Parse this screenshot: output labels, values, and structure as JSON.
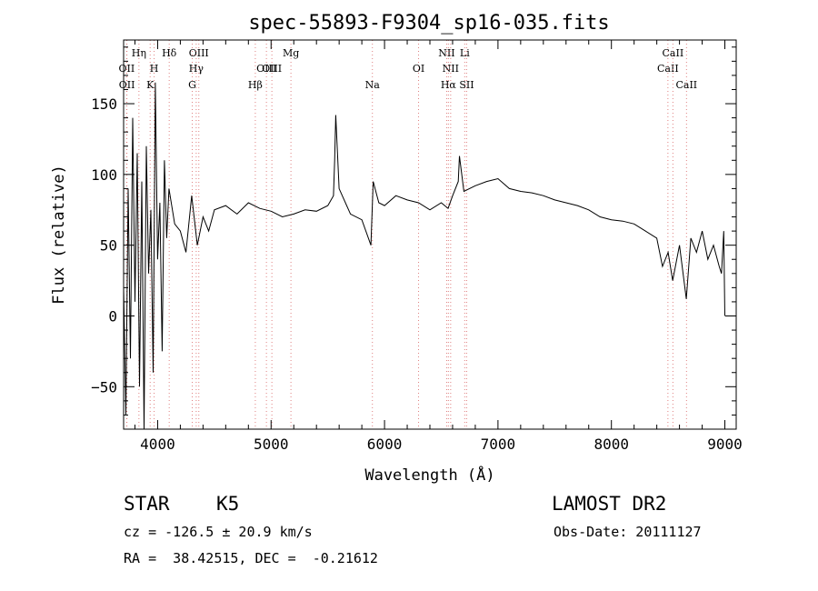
{
  "chart_data": {
    "type": "line",
    "title": "spec-55893-F9304_sp16-035.fits",
    "xlabel": "Wavelength (Å)",
    "ylabel": "Flux (relative)",
    "xlim": [
      3700,
      9100
    ],
    "ylim": [
      -80,
      195
    ],
    "xticks": [
      4000,
      5000,
      6000,
      7000,
      8000,
      9000
    ],
    "yticks": [
      -50,
      0,
      50,
      100,
      150
    ],
    "grid": false,
    "line_color": "#000000",
    "marker_color": "#e08080",
    "series": [
      {
        "x": [
          3700,
          3720,
          3740,
          3760,
          3780,
          3800,
          3820,
          3840,
          3860,
          3880,
          3900,
          3920,
          3940,
          3960,
          3980,
          4000,
          4020,
          4040,
          4060,
          4080,
          4100,
          4150,
          4200,
          4250,
          4300,
          4350,
          4400,
          4450,
          4500,
          4600,
          4700,
          4800,
          4900,
          5000,
          5100,
          5200,
          5300,
          5400,
          5500,
          5550,
          5560,
          5570,
          5600,
          5700,
          5800,
          5880,
          5900,
          5950,
          6000,
          6100,
          6200,
          6300,
          6400,
          6500,
          6560,
          6600,
          6650,
          6660,
          6700,
          6800,
          6900,
          7000,
          7100,
          7200,
          7300,
          7400,
          7500,
          7600,
          7700,
          7800,
          7900,
          8000,
          8100,
          8200,
          8300,
          8400,
          8450,
          8500,
          8540,
          8600,
          8660,
          8700,
          8750,
          8800,
          8850,
          8900,
          8950,
          8970,
          8990,
          9000
        ],
        "y": [
          20,
          -70,
          90,
          -30,
          140,
          10,
          115,
          -50,
          95,
          -80,
          120,
          30,
          75,
          -40,
          165,
          40,
          80,
          -25,
          110,
          55,
          90,
          65,
          60,
          45,
          85,
          50,
          70,
          60,
          75,
          78,
          72,
          80,
          76,
          74,
          70,
          72,
          75,
          74,
          78,
          85,
          110,
          142,
          90,
          72,
          68,
          50,
          95,
          80,
          78,
          85,
          82,
          80,
          75,
          80,
          76,
          85,
          95,
          113,
          88,
          92,
          95,
          97,
          90,
          88,
          87,
          85,
          82,
          80,
          78,
          75,
          70,
          68,
          67,
          65,
          60,
          55,
          35,
          45,
          25,
          50,
          12,
          55,
          45,
          60,
          40,
          50,
          35,
          30,
          60,
          0
        ]
      }
    ],
    "lines": [
      {
        "name": "OII",
        "x": 3727,
        "row": 2
      },
      {
        "name": "OII",
        "x": 3729,
        "row": 3
      },
      {
        "name": "Hη",
        "x": 3835,
        "row": 1
      },
      {
        "name": "H",
        "x": 3969,
        "row": 2
      },
      {
        "name": "K",
        "x": 3934,
        "row": 3
      },
      {
        "name": "Hδ",
        "x": 4102,
        "row": 1
      },
      {
        "name": "OIII",
        "x": 4363,
        "row": 1
      },
      {
        "name": "Hγ",
        "x": 4340,
        "row": 2
      },
      {
        "name": "G",
        "x": 4305,
        "row": 3
      },
      {
        "name": "Hβ",
        "x": 4861,
        "row": 3
      },
      {
        "name": "OIII",
        "x": 4959,
        "row": 2
      },
      {
        "name": "OIII",
        "x": 5007,
        "row": 2
      },
      {
        "name": "Mg",
        "x": 5175,
        "row": 1
      },
      {
        "name": "Na",
        "x": 5893,
        "row": 3
      },
      {
        "name": "OI",
        "x": 6300,
        "row": 2
      },
      {
        "name": "NII",
        "x": 6548,
        "row": 1
      },
      {
        "name": "NII",
        "x": 6583,
        "row": 2
      },
      {
        "name": "Hα",
        "x": 6563,
        "row": 3
      },
      {
        "name": "Li",
        "x": 6707,
        "row": 1
      },
      {
        "name": "SII",
        "x": 6724,
        "row": 3
      },
      {
        "name": "CaII",
        "x": 8498,
        "row": 2
      },
      {
        "name": "CaII",
        "x": 8542,
        "row": 1
      },
      {
        "name": "CaII",
        "x": 8662,
        "row": 3
      }
    ]
  },
  "info": {
    "class_label": "STAR",
    "subclass": "K5",
    "survey": "LAMOST DR2",
    "cz": "cz = -126.5 ± 20.9 km/s",
    "obs_date": "Obs-Date: 20111127",
    "coords": "RA =  38.42515, DEC =  -0.21612"
  }
}
